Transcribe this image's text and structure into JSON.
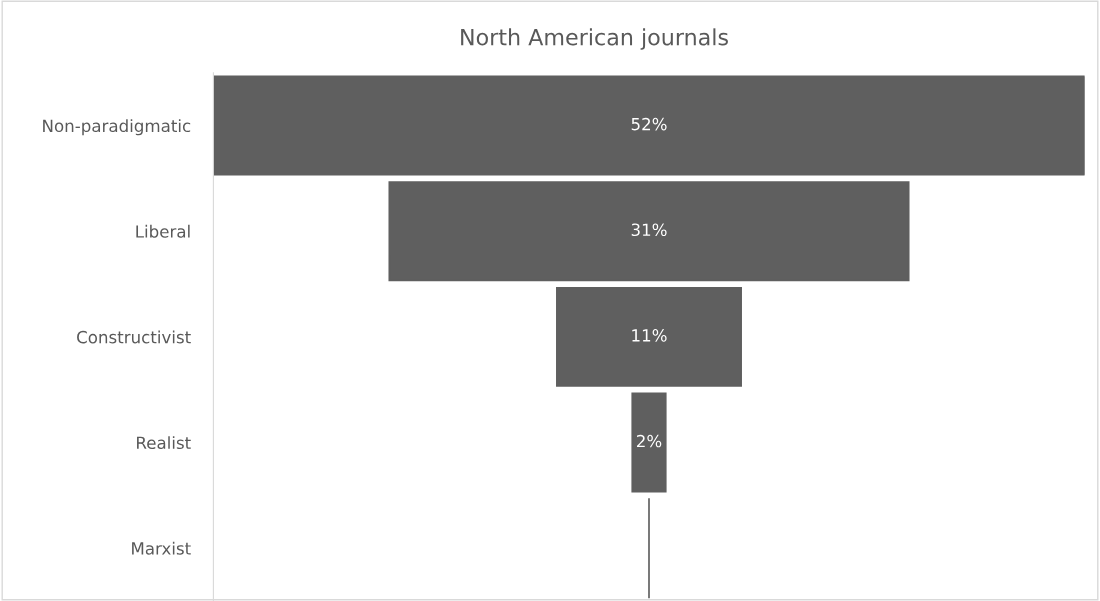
{
  "chart_data": {
    "type": "other",
    "title": "North American journals",
    "categories": [
      "Non-paradigmatic",
      "Liberal",
      "Constructivist",
      "Realist",
      "Marxist"
    ],
    "values": [
      52,
      31,
      11,
      2,
      null
    ],
    "value_labels": [
      "52%",
      "31%",
      "11%",
      "2%",
      null
    ],
    "color": "#5f5f5f"
  }
}
